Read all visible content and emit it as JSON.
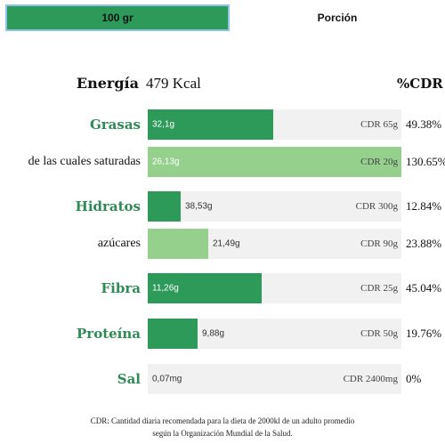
{
  "tabs": [
    {
      "label": "100 gr",
      "active": true
    },
    {
      "label": "Porción",
      "active": false
    }
  ],
  "energy": {
    "label": "Energía",
    "value": "479 Kcal"
  },
  "cdr_header": "%CDR",
  "rows": [
    {
      "label": "Grasas",
      "style": "main",
      "amount": "32,1g",
      "ref": "CDR 65g",
      "percent": "49.38%",
      "fill": 0.4938,
      "color": "dark",
      "value_inside": true
    },
    {
      "label": "de las cuales saturadas",
      "style": "sub",
      "amount": "26,13g",
      "ref": "CDR 20g",
      "percent": "130.65%",
      "fill": 1.0,
      "color": "light",
      "value_inside": true
    },
    {
      "label": "Hidratos",
      "style": "main",
      "amount": "38,53g",
      "ref": "CDR 300g",
      "percent": "12.84%",
      "fill": 0.1284,
      "color": "dark",
      "value_inside": false
    },
    {
      "label": "azúcares",
      "style": "sub",
      "amount": "21,49g",
      "ref": "CDR 90g",
      "percent": "23.88%",
      "fill": 0.2388,
      "color": "light",
      "value_inside": false
    },
    {
      "label": "Fibra",
      "style": "main",
      "amount": "11,26g",
      "ref": "CDR 25g",
      "percent": "45.04%",
      "fill": 0.4504,
      "color": "dark",
      "value_inside": true
    },
    {
      "label": "Proteína",
      "style": "main",
      "amount": "9,88g",
      "ref": "CDR 50g",
      "percent": "19.76%",
      "fill": 0.1976,
      "color": "dark",
      "value_inside": false
    },
    {
      "label": "Sal",
      "style": "main",
      "amount": "0,07mg",
      "ref": "CDR 2400mg",
      "percent": "0%",
      "fill": 0.0,
      "color": "dark",
      "value_inside": false
    }
  ],
  "footnote": {
    "line1": "CDR: Cantidad diaria recomendada para la dieta de 2000kl de un adulto promedio",
    "line2": "según la Organización Mundial de la Salud."
  }
}
